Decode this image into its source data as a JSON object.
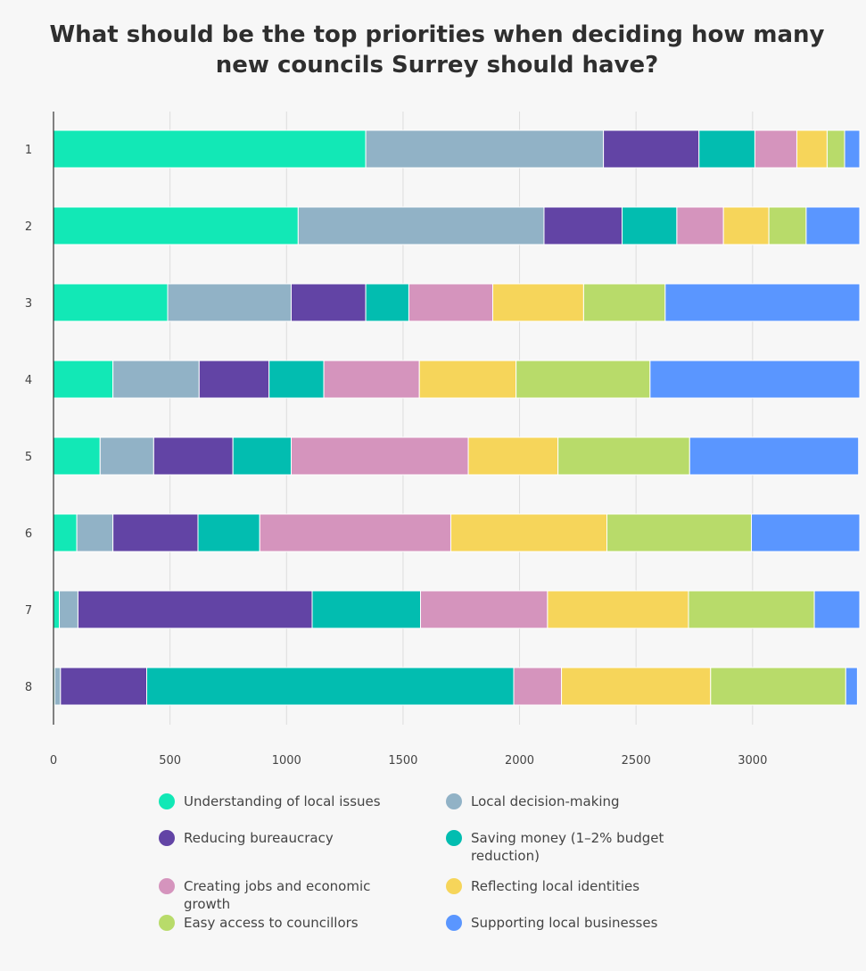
{
  "title": "What should be the top priorities when deciding how many new councils Surrey should have?",
  "chart_data": {
    "type": "bar",
    "orientation": "horizontal",
    "stacked": true,
    "categories": [
      "1",
      "2",
      "3",
      "4",
      "5",
      "6",
      "7",
      "8"
    ],
    "x_ticks": [
      "0",
      "500",
      "1000",
      "1500",
      "2000",
      "2500",
      "3000"
    ],
    "xlim": [
      0,
      3460
    ],
    "grid": "vertical",
    "legend_position": "bottom",
    "series": [
      {
        "name": "Understanding of local issues",
        "color": "#12e8b6",
        "values": [
          1340,
          1050,
          490,
          255,
          200,
          100,
          25,
          5
        ]
      },
      {
        "name": "Local decision-making",
        "color": "#91b2c6",
        "values": [
          1020,
          1055,
          530,
          370,
          230,
          155,
          80,
          25
        ]
      },
      {
        "name": "Reducing bureaucracy",
        "color": "#6244a5",
        "values": [
          410,
          335,
          320,
          300,
          340,
          365,
          1005,
          370
        ]
      },
      {
        "name": "Saving money (1–2% budget reduction)",
        "color": "#02bdb0",
        "values": [
          240,
          235,
          185,
          235,
          250,
          265,
          465,
          1575
        ]
      },
      {
        "name": "Creating jobs and economic growth",
        "color": "#d594bd",
        "values": [
          180,
          200,
          360,
          410,
          760,
          820,
          545,
          205
        ]
      },
      {
        "name": "Reflecting local identities",
        "color": "#f6d55a",
        "values": [
          130,
          195,
          390,
          415,
          385,
          670,
          605,
          640
        ]
      },
      {
        "name": "Easy access to councillors",
        "color": "#b8db6a",
        "values": [
          75,
          160,
          350,
          575,
          565,
          620,
          540,
          580
        ]
      },
      {
        "name": "Supporting local businesses",
        "color": "#5a96ff",
        "values": [
          65,
          230,
          835,
          900,
          725,
          465,
          195,
          50
        ]
      }
    ]
  }
}
